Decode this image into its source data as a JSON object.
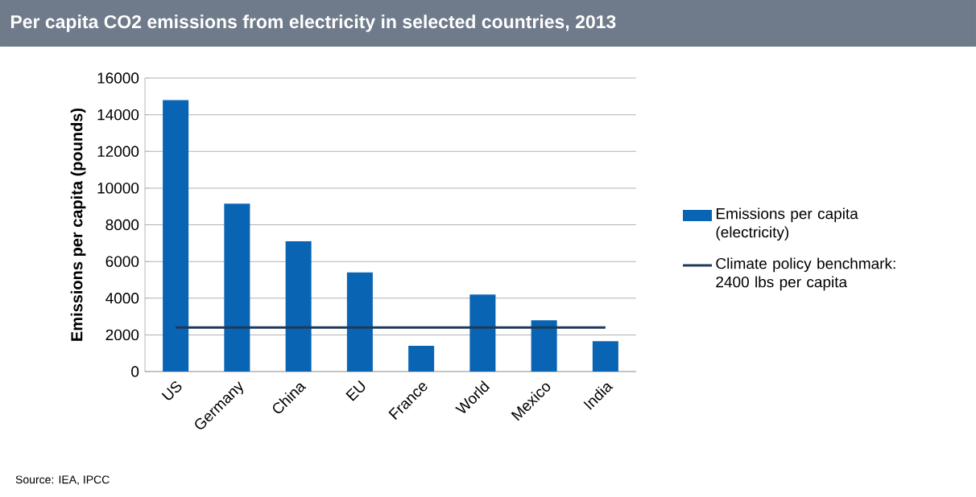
{
  "chart_data": {
    "type": "bar",
    "title": "Per capita CO2 emissions from electricity in selected countries, 2013",
    "categories": [
      "US",
      "Germany",
      "China",
      "EU",
      "France",
      "World",
      "Mexico",
      "India"
    ],
    "series": [
      {
        "name": "Emissions per capita (electricity)",
        "color": "#0a64b4",
        "values": [
          14800,
          9150,
          7100,
          5400,
          1400,
          4200,
          2800,
          1650
        ]
      },
      {
        "name": "Climate policy benchmark: 2400 lbs per capita",
        "type": "line",
        "color": "#1d3a5c",
        "values": [
          2400,
          2400,
          2400,
          2400,
          2400,
          2400,
          2400,
          2400
        ]
      }
    ],
    "ylabel": "Emissions per capita (pounds)",
    "ylim": [
      0,
      16000
    ],
    "yticks": [
      0,
      2000,
      4000,
      6000,
      8000,
      10000,
      12000,
      14000,
      16000
    ],
    "grid": "y",
    "legend": "right",
    "annotations": [
      "Source: IEA, IPCC"
    ]
  }
}
